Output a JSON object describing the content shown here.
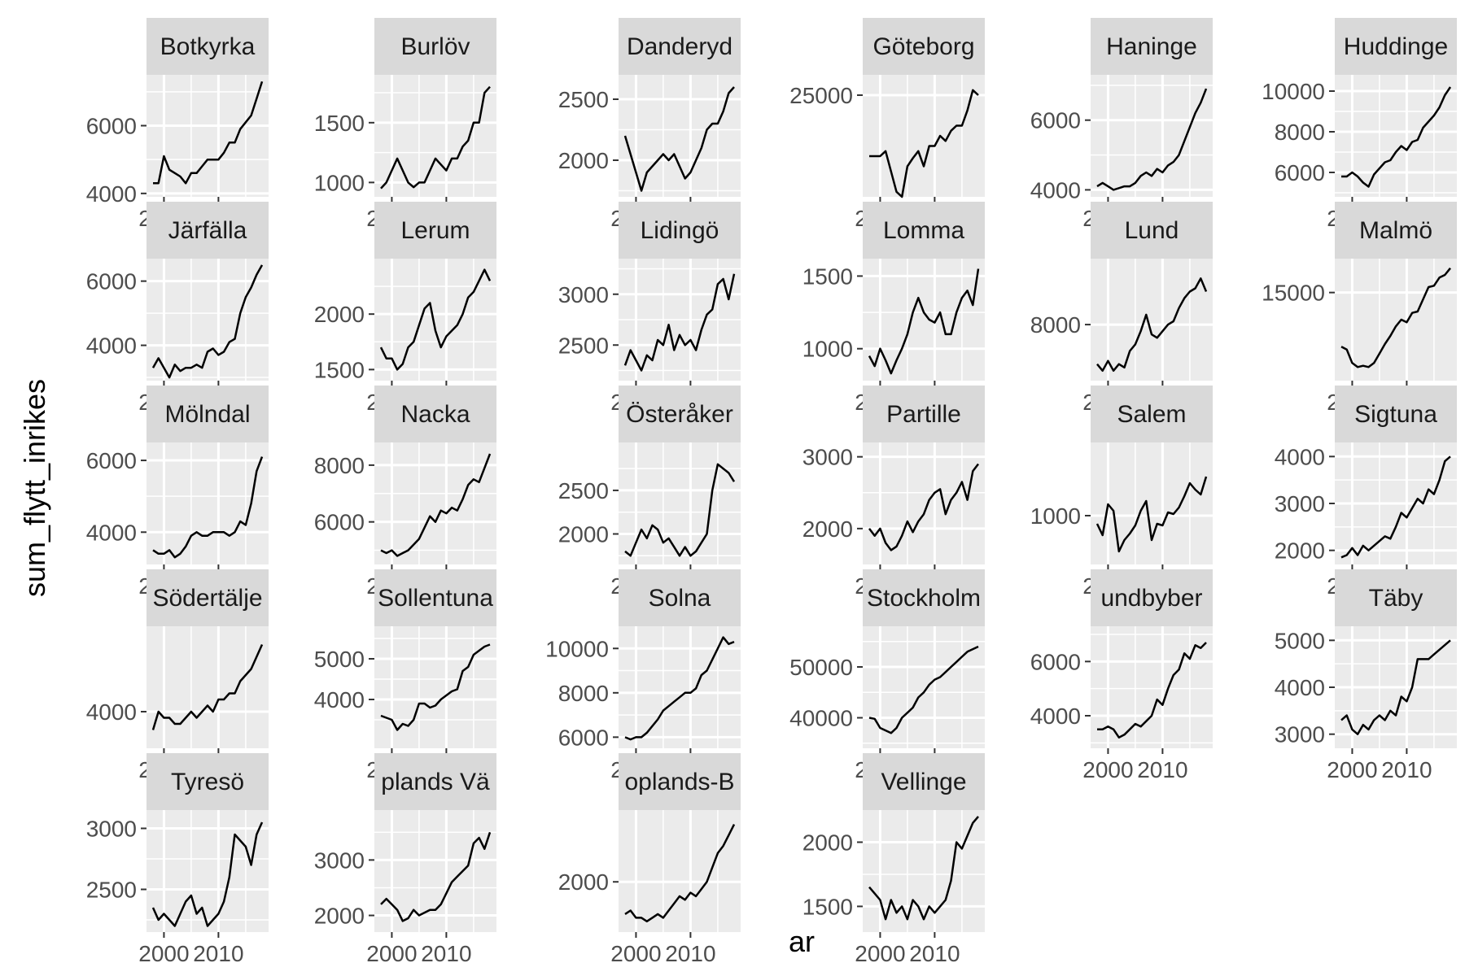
{
  "chart_data": {
    "type": "line",
    "xlabel": "ar",
    "ylabel": "sum_flytt_inrikes",
    "x_ticks": [
      2000,
      2010
    ],
    "x": [
      1998,
      1999,
      2000,
      2001,
      2002,
      2003,
      2004,
      2005,
      2006,
      2007,
      2008,
      2009,
      2010,
      2011,
      2012,
      2013,
      2014,
      2015,
      2016,
      2017,
      2018
    ],
    "xlim": [
      1996.8,
      2019.2
    ],
    "colors": {
      "panel_bg": "#ebebeb",
      "strip_bg": "#d9d9d9",
      "grid": "#ffffff",
      "line": "#000000",
      "tick_label": "#4d4d4d"
    },
    "panels": [
      {
        "name": "Botkyrka",
        "strip_label": "Botkyrka",
        "ylim": [
          3900,
          7500
        ],
        "yticks": [
          4000,
          6000
        ],
        "ytick_labels": [
          "4000",
          "6000"
        ],
        "values": [
          4300,
          4300,
          5100,
          4700,
          4600,
          4500,
          4300,
          4600,
          4600,
          4800,
          5000,
          5000,
          5000,
          5200,
          5500,
          5500,
          5900,
          6100,
          6300,
          6800,
          7300
        ]
      },
      {
        "name": "Burlöv",
        "strip_label": "Burlöv",
        "ylim": [
          880,
          1900
        ],
        "yticks": [
          1000,
          1500
        ],
        "ytick_labels": [
          "1000",
          "1500"
        ],
        "values": [
          950,
          1000,
          1100,
          1200,
          1100,
          1000,
          960,
          1000,
          1000,
          1100,
          1200,
          1150,
          1100,
          1200,
          1200,
          1300,
          1350,
          1500,
          1500,
          1750,
          1800
        ]
      },
      {
        "name": "Danderyd",
        "strip_label": "Danderyd",
        "ylim": [
          1700,
          2700
        ],
        "yticks": [
          2000,
          2500
        ],
        "ytick_labels": [
          "2000",
          "2500"
        ],
        "values": [
          2200,
          2050,
          1900,
          1750,
          1900,
          1950,
          2000,
          2050,
          2000,
          2050,
          1950,
          1850,
          1900,
          2000,
          2100,
          2250,
          2300,
          2300,
          2400,
          2550,
          2600
        ]
      },
      {
        "name": "Göteborg",
        "strip_label": "Göteborg",
        "ylim": [
          15000,
          27000
        ],
        "yticks": [
          25000
        ],
        "ytick_labels": [
          "25000"
        ],
        "values": [
          19000,
          19000,
          19000,
          19500,
          17500,
          15500,
          15000,
          18000,
          18800,
          19500,
          18000,
          20000,
          20000,
          21000,
          20500,
          21500,
          22000,
          22000,
          23500,
          25500,
          25000
        ]
      },
      {
        "name": "Haninge",
        "strip_label": "Haninge",
        "ylim": [
          3800,
          7300
        ],
        "yticks": [
          4000,
          6000
        ],
        "ytick_labels": [
          "4000",
          "6000"
        ],
        "values": [
          4100,
          4200,
          4100,
          4000,
          4050,
          4100,
          4100,
          4200,
          4400,
          4500,
          4400,
          4600,
          4500,
          4700,
          4800,
          5000,
          5400,
          5800,
          6200,
          6500,
          6900
        ]
      },
      {
        "name": "Huddinge",
        "strip_label": "Huddinge",
        "ylim": [
          4800,
          10800
        ],
        "yticks": [
          6000,
          8000,
          10000
        ],
        "ytick_labels": [
          "6000",
          "8000",
          "10000"
        ],
        "values": [
          5800,
          5800,
          6000,
          5800,
          5500,
          5300,
          5900,
          6200,
          6500,
          6600,
          7000,
          7300,
          7100,
          7500,
          7600,
          8200,
          8500,
          8800,
          9200,
          9800,
          10200
        ]
      },
      {
        "name": "Järfälla",
        "strip_label": "Järfälla",
        "ylim": [
          2900,
          6700
        ],
        "yticks": [
          4000,
          6000
        ],
        "ytick_labels": [
          "4000",
          "6000"
        ],
        "values": [
          3300,
          3600,
          3300,
          3000,
          3400,
          3200,
          3300,
          3300,
          3400,
          3300,
          3800,
          3900,
          3700,
          3800,
          4100,
          4200,
          5000,
          5500,
          5800,
          6200,
          6500
        ]
      },
      {
        "name": "Lerum",
        "strip_label": "Lerum",
        "ylim": [
          1400,
          2500
        ],
        "yticks": [
          1500,
          2000
        ],
        "ytick_labels": [
          "1500",
          "2000"
        ],
        "values": [
          1700,
          1600,
          1600,
          1500,
          1550,
          1700,
          1750,
          1900,
          2050,
          2100,
          1850,
          1700,
          1800,
          1850,
          1900,
          2000,
          2150,
          2200,
          2300,
          2400,
          2300
        ]
      },
      {
        "name": "Lidingö",
        "strip_label": "Lidingö",
        "ylim": [
          2150,
          3350
        ],
        "yticks": [
          2500,
          3000
        ],
        "ytick_labels": [
          "2500",
          "3000"
        ],
        "values": [
          2300,
          2450,
          2350,
          2250,
          2400,
          2350,
          2550,
          2500,
          2700,
          2450,
          2600,
          2500,
          2550,
          2450,
          2650,
          2800,
          2850,
          3100,
          3150,
          2950,
          3200
        ]
      },
      {
        "name": "Lomma",
        "strip_label": "Lomma",
        "ylim": [
          780,
          1620
        ],
        "yticks": [
          1000,
          1500
        ],
        "ytick_labels": [
          "1000",
          "1500"
        ],
        "values": [
          950,
          880,
          1000,
          920,
          830,
          920,
          1000,
          1100,
          1250,
          1350,
          1250,
          1200,
          1180,
          1250,
          1100,
          1100,
          1250,
          1350,
          1400,
          1300,
          1550
        ]
      },
      {
        "name": "Lund",
        "strip_label": "Lund",
        "ylim": [
          6300,
          10000
        ],
        "yticks": [
          8000
        ],
        "ytick_labels": [
          "8000"
        ],
        "values": [
          6800,
          6600,
          6900,
          6600,
          6800,
          6700,
          7200,
          7400,
          7800,
          8300,
          7700,
          7600,
          7800,
          8000,
          8100,
          8500,
          8800,
          9000,
          9100,
          9400,
          9000
        ]
      },
      {
        "name": "Malmö",
        "strip_label": "Malmö",
        "ylim": [
          8500,
          17500
        ],
        "yticks": [
          15000
        ],
        "ytick_labels": [
          "15000"
        ],
        "values": [
          11000,
          10800,
          9800,
          9500,
          9600,
          9500,
          9800,
          10500,
          11200,
          11800,
          12500,
          13000,
          12800,
          13500,
          13600,
          14500,
          15400,
          15500,
          16100,
          16300,
          16800
        ]
      },
      {
        "name": "Mölndal",
        "strip_label": "Mölndal",
        "ylim": [
          3100,
          6500
        ],
        "yticks": [
          4000,
          6000
        ],
        "ytick_labels": [
          "4000",
          "6000"
        ],
        "values": [
          3500,
          3400,
          3400,
          3500,
          3300,
          3400,
          3600,
          3900,
          4000,
          3900,
          3900,
          4000,
          4000,
          4000,
          3900,
          4000,
          4300,
          4200,
          4800,
          5700,
          6100
        ]
      },
      {
        "name": "Nacka",
        "strip_label": "Nacka",
        "ylim": [
          4500,
          8800
        ],
        "yticks": [
          6000,
          8000
        ],
        "ytick_labels": [
          "6000",
          "8000"
        ],
        "values": [
          5000,
          4900,
          5000,
          4800,
          4900,
          5000,
          5200,
          5400,
          5800,
          6200,
          6000,
          6400,
          6300,
          6500,
          6400,
          6800,
          7300,
          7500,
          7400,
          7900,
          8400
        ]
      },
      {
        "name": "Österåker",
        "strip_label": "Österåker",
        "ylim": [
          1650,
          3050
        ],
        "yticks": [
          2000,
          2500
        ],
        "ytick_labels": [
          "2000",
          "2500"
        ],
        "values": [
          1800,
          1750,
          1900,
          2050,
          1950,
          2100,
          2050,
          1900,
          1950,
          1850,
          1750,
          1850,
          1750,
          1800,
          1900,
          2000,
          2500,
          2800,
          2750,
          2700,
          2600
        ]
      },
      {
        "name": "Partille",
        "strip_label": "Partille",
        "ylim": [
          1500,
          3200
        ],
        "yticks": [
          2000,
          3000
        ],
        "ytick_labels": [
          "2000",
          "3000"
        ],
        "values": [
          2000,
          1900,
          2000,
          1800,
          1700,
          1750,
          1900,
          2100,
          1950,
          2100,
          2200,
          2400,
          2500,
          2550,
          2200,
          2400,
          2500,
          2650,
          2400,
          2800,
          2900
        ]
      },
      {
        "name": "Salem",
        "strip_label": "Salem",
        "ylim": [
          700,
          1450
        ],
        "yticks": [
          1000
        ],
        "ytick_labels": [
          "1000"
        ],
        "values": [
          950,
          880,
          1070,
          1030,
          780,
          850,
          890,
          940,
          1030,
          1090,
          850,
          950,
          940,
          1020,
          1010,
          1050,
          1120,
          1200,
          1160,
          1130,
          1240
        ]
      },
      {
        "name": "Sigtuna",
        "strip_label": "Sigtuna",
        "ylim": [
          1700,
          4300
        ],
        "yticks": [
          2000,
          3000,
          4000
        ],
        "ytick_labels": [
          "2000",
          "3000",
          "4000"
        ],
        "values": [
          1850,
          1900,
          2050,
          1900,
          2100,
          2000,
          2100,
          2200,
          2300,
          2250,
          2500,
          2800,
          2700,
          2900,
          3100,
          3000,
          3300,
          3200,
          3500,
          3900,
          4000
        ]
      },
      {
        "name": "Södertälje",
        "strip_label": "Södertälje",
        "ylim": [
          3400,
          5400
        ],
        "yticks": [
          4000
        ],
        "ytick_labels": [
          "4000"
        ],
        "values": [
          3700,
          4000,
          3900,
          3900,
          3800,
          3800,
          3900,
          4000,
          3900,
          4000,
          4100,
          4000,
          4200,
          4200,
          4300,
          4300,
          4500,
          4600,
          4700,
          4900,
          5100
        ]
      },
      {
        "name": "Sollentuna",
        "strip_label": "Sollentuna",
        "ylim": [
          2800,
          5800
        ],
        "yticks": [
          4000,
          5000
        ],
        "ytick_labels": [
          "4000",
          "5000"
        ],
        "values": [
          3600,
          3550,
          3500,
          3250,
          3400,
          3350,
          3500,
          3900,
          3900,
          3800,
          3850,
          4000,
          4100,
          4200,
          4250,
          4700,
          4800,
          5100,
          5200,
          5300,
          5350
        ]
      },
      {
        "name": "Solna",
        "strip_label": "Solna",
        "ylim": [
          5500,
          11000
        ],
        "yticks": [
          6000,
          8000,
          10000
        ],
        "ytick_labels": [
          "6000",
          "8000",
          "10000"
        ],
        "values": [
          6000,
          5900,
          6000,
          6000,
          6200,
          6500,
          6800,
          7200,
          7400,
          7600,
          7800,
          8000,
          8000,
          8200,
          8800,
          9000,
          9500,
          10000,
          10500,
          10200,
          10300
        ]
      },
      {
        "name": "Stockholm",
        "strip_label": "Stockholm",
        "ylim": [
          34000,
          58000
        ],
        "yticks": [
          40000,
          50000
        ],
        "ytick_labels": [
          "40000",
          "50000"
        ],
        "values": [
          40000,
          39800,
          38000,
          37500,
          37000,
          38000,
          40000,
          41000,
          42000,
          44000,
          45000,
          46500,
          47500,
          48000,
          49000,
          50000,
          51000,
          52000,
          53000,
          53500,
          54000
        ]
      },
      {
        "name": "Sundbyberg",
        "strip_label": "undbyber",
        "ylim": [
          2800,
          7300
        ],
        "yticks": [
          4000,
          6000
        ],
        "ytick_labels": [
          "4000",
          "6000"
        ],
        "values": [
          3500,
          3500,
          3600,
          3500,
          3200,
          3300,
          3500,
          3700,
          3600,
          3800,
          4000,
          4600,
          4400,
          5000,
          5500,
          5700,
          6300,
          6100,
          6600,
          6500,
          6700
        ]
      },
      {
        "name": "Täby",
        "strip_label": "Täby",
        "ylim": [
          2700,
          5300
        ],
        "yticks": [
          3000,
          4000,
          5000
        ],
        "ytick_labels": [
          "3000",
          "4000",
          "5000"
        ],
        "values": [
          3300,
          3400,
          3100,
          3000,
          3200,
          3100,
          3300,
          3400,
          3300,
          3500,
          3400,
          3800,
          3700,
          4000,
          4600,
          4600,
          4600,
          4700,
          4800,
          4900,
          5000
        ]
      },
      {
        "name": "Tyresö",
        "strip_label": "Tyresö",
        "ylim": [
          2150,
          3150
        ],
        "yticks": [
          2500,
          3000
        ],
        "ytick_labels": [
          "2500",
          "3000"
        ],
        "values": [
          2350,
          2250,
          2300,
          2250,
          2200,
          2300,
          2400,
          2450,
          2300,
          2350,
          2200,
          2250,
          2300,
          2400,
          2600,
          2950,
          2900,
          2850,
          2700,
          2950,
          3050
        ]
      },
      {
        "name": "Upplands Väsby",
        "strip_label": "plands Vä",
        "ylim": [
          1700,
          3900
        ],
        "yticks": [
          2000,
          3000
        ],
        "ytick_labels": [
          "2000",
          "3000"
        ],
        "values": [
          2200,
          2300,
          2200,
          2100,
          1900,
          1950,
          2100,
          2000,
          2050,
          2100,
          2100,
          2200,
          2400,
          2600,
          2700,
          2800,
          2900,
          3300,
          3400,
          3200,
          3500
        ]
      },
      {
        "name": "Upplands-Bro",
        "strip_label": "oplands-B",
        "ylim": [
          1300,
          3000
        ],
        "yticks": [
          2000
        ],
        "ytick_labels": [
          "2000"
        ],
        "values": [
          1550,
          1600,
          1500,
          1500,
          1450,
          1500,
          1550,
          1500,
          1600,
          1700,
          1800,
          1750,
          1850,
          1800,
          1900,
          2000,
          2200,
          2400,
          2500,
          2650,
          2800
        ]
      },
      {
        "name": "Vellinge",
        "strip_label": "Vellinge",
        "ylim": [
          1300,
          2250
        ],
        "yticks": [
          1500,
          2000
        ],
        "ytick_labels": [
          "1500",
          "2000"
        ],
        "values": [
          1650,
          1600,
          1550,
          1400,
          1550,
          1450,
          1500,
          1400,
          1550,
          1500,
          1400,
          1500,
          1450,
          1500,
          1550,
          1700,
          2000,
          1950,
          2050,
          2150,
          2200
        ]
      }
    ]
  }
}
